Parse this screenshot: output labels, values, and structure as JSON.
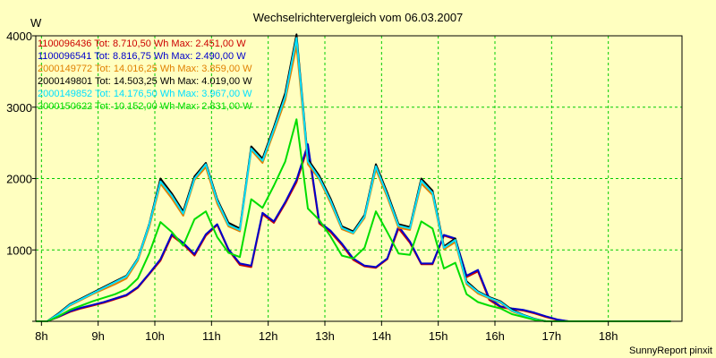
{
  "chart_data": {
    "type": "line",
    "title": "Wechselrichtervergleich vom 06.03.2007",
    "ylabel": "W",
    "xlabel": "",
    "x_tick_labels": [
      "8h",
      "9h",
      "10h",
      "11h",
      "12h",
      "13h",
      "14h",
      "15h",
      "16h",
      "17h",
      "18h"
    ],
    "x_ticks": [
      8,
      9,
      10,
      11,
      12,
      13,
      14,
      15,
      16,
      17,
      18
    ],
    "xlim": [
      7.9,
      19.3
    ],
    "y_ticks": [
      0,
      1000,
      2000,
      3000,
      4000
    ],
    "y_tick_labels": [
      "",
      "1000",
      "2000",
      "3000",
      "4000"
    ],
    "ylim": [
      0,
      4000
    ],
    "grid": true,
    "background_color": "#ffffc0",
    "grid_color": "#00cc00",
    "legend_placement": "top-left",
    "x": [
      7.9,
      8.1,
      8.3,
      8.5,
      8.7,
      8.9,
      9.1,
      9.3,
      9.5,
      9.7,
      9.9,
      10.1,
      10.3,
      10.5,
      10.7,
      10.9,
      11.1,
      11.3,
      11.5,
      11.7,
      11.9,
      12.1,
      12.3,
      12.5,
      12.7,
      12.9,
      13.1,
      13.3,
      13.5,
      13.7,
      13.9,
      14.1,
      14.3,
      14.5,
      14.7,
      14.9,
      15.1,
      15.3,
      15.5,
      15.7,
      15.9,
      16.1,
      16.3,
      16.5,
      16.7,
      16.9,
      17.1,
      17.3,
      17.5,
      17.7,
      17.9,
      18.1,
      18.3,
      18.5,
      18.7,
      18.9,
      19.1
    ],
    "series": [
      {
        "name": "1100096436 Tot: 8.710,50 Wh Max: 2.451,00 W",
        "color": "#cc0000",
        "values": [
          0,
          0,
          60,
          130,
          180,
          220,
          260,
          310,
          360,
          470,
          660,
          850,
          1200,
          1080,
          920,
          1200,
          1350,
          1000,
          790,
          760,
          1500,
          1380,
          1650,
          1950,
          2440,
          1370,
          1250,
          1070,
          860,
          770,
          750,
          870,
          1300,
          1100,
          800,
          800,
          1200,
          1150,
          620,
          700,
          300,
          200,
          170,
          150,
          110,
          60,
          20,
          0,
          0,
          0,
          0,
          0,
          0,
          0,
          0,
          0,
          0
        ]
      },
      {
        "name": "1100096541 Tot: 8.816,75 Wh Max: 2.490,00 W",
        "color": "#0000cc",
        "values": [
          0,
          0,
          65,
          140,
          190,
          230,
          270,
          320,
          370,
          480,
          670,
          870,
          1220,
          1100,
          940,
          1220,
          1360,
          1010,
          810,
          780,
          1520,
          1400,
          1670,
          1980,
          2480,
          1390,
          1270,
          1090,
          880,
          780,
          760,
          880,
          1330,
          1120,
          810,
          810,
          1210,
          1160,
          640,
          720,
          320,
          210,
          180,
          160,
          120,
          70,
          25,
          0,
          0,
          0,
          0,
          0,
          0,
          0,
          0,
          0,
          0
        ]
      },
      {
        "name": "2000149772 Tot: 14.016,25 Wh Max: 3.859,00 W",
        "color": "#e08000",
        "values": [
          0,
          0,
          100,
          220,
          300,
          380,
          450,
          520,
          600,
          850,
          1320,
          1930,
          1720,
          1480,
          1980,
          2160,
          1650,
          1330,
          1260,
          2400,
          2220,
          2650,
          3100,
          3860,
          2200,
          1990,
          1660,
          1290,
          1230,
          1450,
          2130,
          1740,
          1310,
          1280,
          1930,
          1770,
          1010,
          1110,
          520,
          390,
          320,
          260,
          140,
          80,
          30,
          0,
          0,
          0,
          0,
          0,
          0,
          0,
          0,
          0,
          0,
          0,
          0
        ]
      },
      {
        "name": "2000149801 Tot: 14.503,25 Wh Max: 4.019,00 W",
        "color": "#000000",
        "values": [
          0,
          0,
          110,
          240,
          320,
          400,
          480,
          560,
          640,
          880,
          1360,
          2000,
          1790,
          1540,
          2030,
          2220,
          1710,
          1380,
          1300,
          2450,
          2280,
          2720,
          3200,
          4020,
          2270,
          2040,
          1720,
          1330,
          1260,
          1490,
          2200,
          1800,
          1360,
          1320,
          2000,
          1830,
          1050,
          1160,
          560,
          420,
          340,
          280,
          160,
          90,
          35,
          0,
          0,
          0,
          0,
          0,
          0,
          0,
          0,
          0,
          0,
          0,
          0
        ]
      },
      {
        "name": "2000149852 Tot: 14.176,50 Wh Max: 3.967,00 W",
        "color": "#00e0ff",
        "values": [
          0,
          0,
          100,
          230,
          310,
          390,
          470,
          550,
          630,
          870,
          1350,
          1960,
          1760,
          1510,
          2000,
          2200,
          1690,
          1350,
          1280,
          2420,
          2250,
          2690,
          3150,
          3970,
          2240,
          2010,
          1690,
          1310,
          1240,
          1470,
          2170,
          1770,
          1340,
          1300,
          1970,
          1800,
          1030,
          1140,
          540,
          410,
          330,
          270,
          150,
          85,
          30,
          0,
          0,
          0,
          0,
          0,
          0,
          0,
          0,
          0,
          0,
          0,
          0
        ]
      },
      {
        "name": "2000150622 Tot: 10.152,00 Wh Max: 2.831,00 W",
        "color": "#00dd00",
        "values": [
          0,
          0,
          70,
          160,
          220,
          280,
          330,
          380,
          450,
          600,
          950,
          1390,
          1250,
          1060,
          1430,
          1540,
          1180,
          960,
          900,
          1710,
          1590,
          1900,
          2240,
          2830,
          1580,
          1420,
          1190,
          920,
          880,
          1030,
          1540,
          1250,
          950,
          930,
          1400,
          1300,
          740,
          820,
          380,
          270,
          220,
          180,
          100,
          60,
          20,
          0,
          0,
          0,
          0,
          0,
          0,
          0,
          0,
          0,
          0,
          0,
          0
        ]
      }
    ]
  },
  "credit": "SunnyReport pinxit"
}
